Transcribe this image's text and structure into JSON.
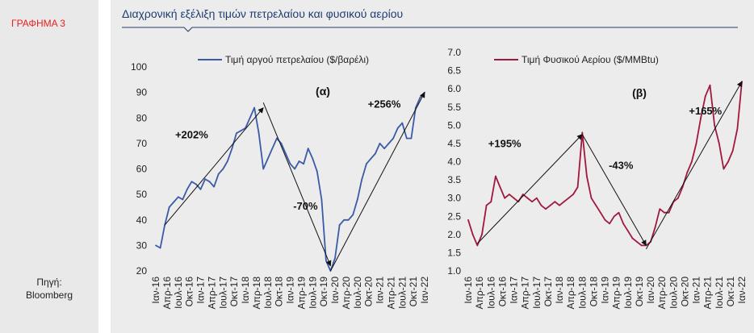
{
  "figure_label": "ΓΡΑΦΗΜΑ 3",
  "source_line1": "Πηγή:",
  "source_line2": "Bloomberg",
  "header_title": "Διαχρονική εξέλιξη τιμών πετρελαίου και φυσικού αερίου",
  "colors": {
    "oil": "#3b5aa8",
    "gas": "#a0183c",
    "title": "#1f3d73",
    "figlabel": "#e8211f"
  },
  "chart_data": [
    {
      "type": "line",
      "panel_label": "(α)",
      "series": [
        {
          "name": "Τιμή αργού πετρελαίου ($/βαρέλι)"
        }
      ],
      "ylim": [
        20,
        100
      ],
      "yticks": [
        "20",
        "30",
        "40",
        "50",
        "60",
        "70",
        "80",
        "90",
        "100"
      ],
      "xticks": [
        "Ιαν-16",
        "Απρ-16",
        "Ιουλ-16",
        "Οκτ-16",
        "Ιαν-17",
        "Απρ-17",
        "Ιουλ-17",
        "Οκτ-17",
        "Ιαν-18",
        "Απρ-18",
        "Ιουλ-18",
        "Οκτ-18",
        "Ιαν-19",
        "Απρ-19",
        "Ιουλ-19",
        "Οκτ-19",
        "Ιαν-20",
        "Απρ-20",
        "Ιουλ-20",
        "Οκτ-20",
        "Ιαν-21",
        "Απρ-21",
        "Ιουλ-21",
        "Οκτ-21",
        "Ιαν-22"
      ],
      "values": [
        30,
        29,
        38,
        45,
        47,
        49,
        48,
        52,
        55,
        54,
        52,
        56,
        55,
        53,
        58,
        60,
        63,
        68,
        74,
        75,
        76,
        80,
        84,
        74,
        60,
        64,
        68,
        72,
        70,
        66,
        62,
        60,
        63,
        62,
        68,
        64,
        59,
        48,
        24,
        20,
        25,
        38,
        40,
        40,
        42,
        48,
        56,
        62,
        64,
        66,
        70,
        68,
        70,
        72,
        76,
        78,
        72,
        72,
        84,
        88,
        90
      ],
      "annotations": [
        {
          "text": "+202%",
          "x": 8,
          "y": 72
        },
        {
          "text": "-70%",
          "x": 33.4,
          "y": 44
        },
        {
          "text": "+256%",
          "x": 51,
          "y": 84
        }
      ]
    },
    {
      "type": "line",
      "panel_label": "(β)",
      "series": [
        {
          "name": "Τιμή Φυσικού Αερίου ($/MMBtu)"
        }
      ],
      "ylim": [
        1.0,
        7.0
      ],
      "yticks": [
        "1.0",
        "1.5",
        "2.0",
        "2.5",
        "3.0",
        "3.5",
        "4.0",
        "4.5",
        "5.0",
        "5.5",
        "6.0",
        "6.5",
        "7.0"
      ],
      "xticks": [
        "Ιαν-16",
        "Απρ-16",
        "Ιουλ-16",
        "Οκτ-16",
        "Ιαν-17",
        "Απρ-17",
        "Ιουλ-17",
        "Οκτ-17",
        "Ιαν-18",
        "Απρ-18",
        "Ιουλ-18",
        "Οκτ-18",
        "Ιαν-19",
        "Απρ-19",
        "Ιουλ-19",
        "Οκτ-19",
        "Ιαν-20",
        "Απρ-20",
        "Ιουλ-20",
        "Οκτ-20",
        "Ιαν-21",
        "Απρ-21",
        "Ιουλ-21",
        "Οκτ-21",
        "Ιαν-22"
      ],
      "values": [
        2.4,
        2.0,
        1.7,
        2.0,
        2.8,
        2.9,
        3.6,
        3.3,
        3.0,
        3.1,
        3.0,
        2.9,
        3.1,
        3.0,
        2.9,
        3.0,
        2.8,
        2.7,
        2.8,
        2.9,
        2.8,
        2.9,
        3.0,
        3.1,
        3.3,
        4.8,
        3.6,
        3.0,
        2.8,
        2.6,
        2.4,
        2.3,
        2.5,
        2.6,
        2.3,
        2.1,
        1.9,
        1.8,
        1.7,
        1.7,
        1.8,
        2.2,
        2.7,
        2.6,
        2.6,
        2.9,
        3.0,
        3.3,
        3.7,
        4.0,
        4.5,
        5.2,
        5.8,
        6.1,
        5.0,
        4.5,
        3.8,
        4.0,
        4.3,
        4.9,
        6.2
      ],
      "annotations": [
        {
          "text": "+195%",
          "x": 8,
          "y": 4.4
        },
        {
          "text": "-43%",
          "x": 33.5,
          "y": 3.8
        },
        {
          "text": "+165%",
          "x": 52,
          "y": 5.3
        }
      ]
    }
  ]
}
